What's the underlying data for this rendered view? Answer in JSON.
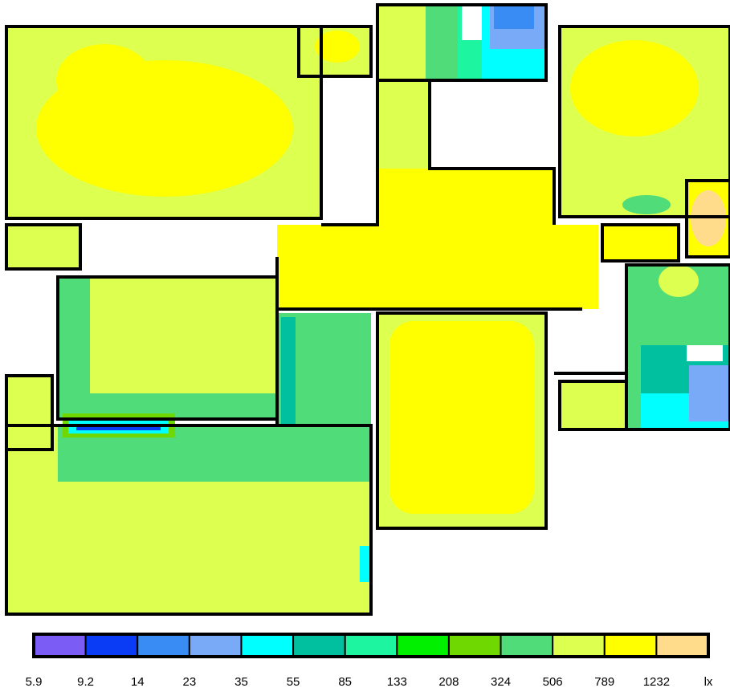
{
  "legend": {
    "colors": [
      "#7b5cf5",
      "#0a3cf5",
      "#3a8cf5",
      "#78aaf8",
      "#00ffff",
      "#00c0a0",
      "#1ef5a0",
      "#00f000",
      "#6ed800",
      "#50dc78",
      "#dcff50",
      "#ffff00",
      "#ffdc8c"
    ],
    "labels": [
      5.9,
      9.2,
      14,
      23,
      35,
      55,
      85,
      133,
      208,
      324,
      506,
      789,
      1232
    ],
    "unit": "lx"
  }
}
